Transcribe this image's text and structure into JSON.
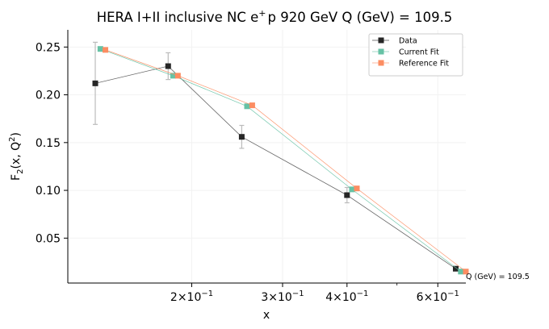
{
  "chart_data": {
    "type": "line",
    "title": "HERA I+II inclusive NC e$^+$p 920 GeV Q (GeV) = 109.5",
    "title_parts": {
      "before": "HERA I+II inclusive NC e",
      "sup": "+",
      "after": "p 920 GeV Q (GeV) = 109.5"
    },
    "xlabel": "x",
    "ylabel": "F$_2$(x, Q$^2$)",
    "ylabel_parts": {
      "a": "F",
      "sub": "2",
      "b": "(x, Q",
      "sup": "2",
      "c": ")"
    },
    "x_scale": "log",
    "xlim": [
      0.115,
      0.68
    ],
    "ylim": [
      0.003,
      0.268
    ],
    "yticks": [
      0.05,
      0.1,
      0.15,
      0.2,
      0.25
    ],
    "ytick_labels": [
      "0.05",
      "0.10",
      "0.15",
      "0.20",
      "0.25"
    ],
    "xticks": [
      {
        "value": 0.2,
        "base": "2×10",
        "exp": "−1"
      },
      {
        "value": 0.3,
        "base": "3×10",
        "exp": "−1"
      },
      {
        "value": 0.4,
        "base": "4×10",
        "exp": "−1"
      },
      {
        "value": 0.6,
        "base": "6×10",
        "exp": "−1"
      }
    ],
    "x_minor_ticks": [
      0.5
    ],
    "grid": true,
    "legend_position": "top-right",
    "annotation": "Q (GeV) = 109.5",
    "series": [
      {
        "name": "Data",
        "color": "#262626",
        "marker": "square",
        "x": [
          0.13,
          0.18,
          0.25,
          0.4,
          0.65
        ],
        "y": [
          0.212,
          0.23,
          0.156,
          0.095,
          0.018
        ],
        "yerr": [
          0.043,
          0.014,
          0.012,
          0.008,
          0.002
        ]
      },
      {
        "name": "Current Fit",
        "color": "#66c2a5",
        "marker": "square",
        "x": [
          0.133,
          0.184,
          0.256,
          0.409,
          0.665
        ],
        "y": [
          0.248,
          0.22,
          0.188,
          0.101,
          0.015
        ]
      },
      {
        "name": "Reference Fit",
        "color": "#fc8d62",
        "marker": "square",
        "x": [
          0.136,
          0.188,
          0.262,
          0.418,
          0.68
        ],
        "y": [
          0.247,
          0.22,
          0.189,
          0.102,
          0.015
        ]
      }
    ]
  }
}
